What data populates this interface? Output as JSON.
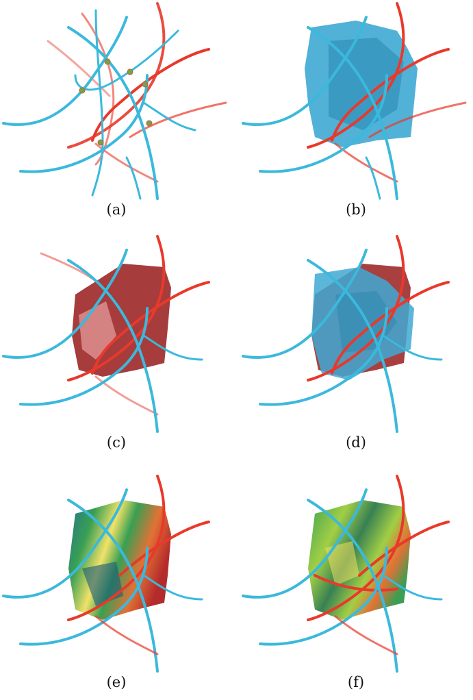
{
  "figure": {
    "panels": [
      {
        "label": "(a)",
        "surface": "none"
      },
      {
        "label": "(b)",
        "surface": "blue"
      },
      {
        "label": "(c)",
        "surface": "red"
      },
      {
        "label": "(d)",
        "surface": "red-blue"
      },
      {
        "label": "(e)",
        "surface": "colormap"
      },
      {
        "label": "(f)",
        "surface": "colormap-green"
      }
    ],
    "colors": {
      "blue_curves": "#3bb9dc",
      "red_curves": "#e8392b",
      "blue_surface": "#3ea9d3",
      "red_surface": "#9e2b2b",
      "critical_points": "#7aa04a",
      "colormap": [
        "#1a6b8a",
        "#2e9a4a",
        "#9ccc3c",
        "#f0e060",
        "#e06a2a",
        "#b02020"
      ]
    }
  }
}
